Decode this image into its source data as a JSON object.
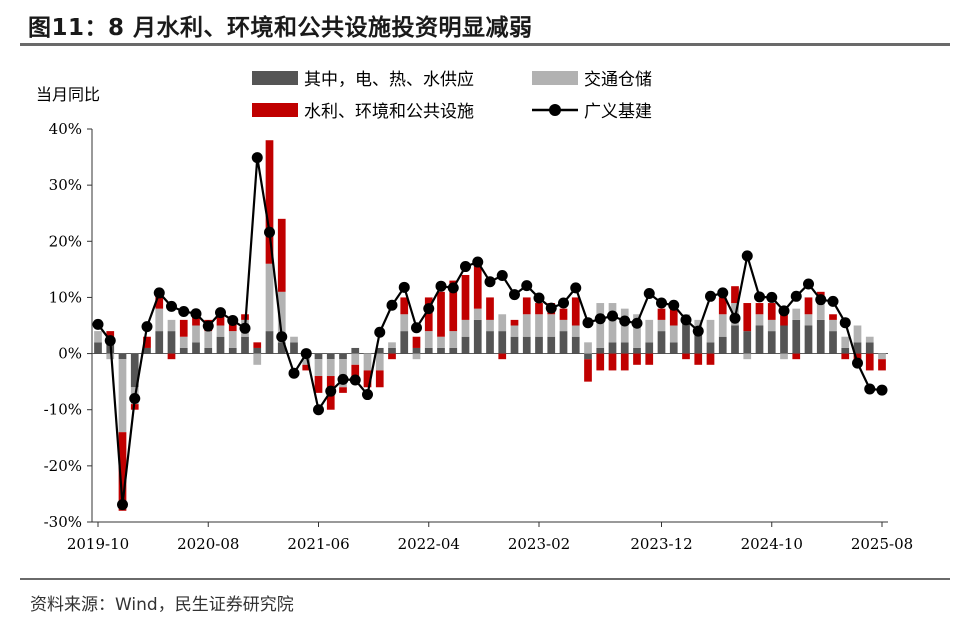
{
  "header": {
    "title": "图11：8 月水利、环境和公共设施投资明显减弱"
  },
  "footer": {
    "source": "资料来源：Wind，民生证券研究院"
  },
  "colors": {
    "dark": "#555555",
    "light": "#b2b2b2",
    "red": "#c00000",
    "line": "#000000"
  },
  "chart_data": {
    "type": "bar+line",
    "ylabel": "当月同比",
    "ylim": [
      -30,
      40
    ],
    "yticks": [
      "40%",
      "30%",
      "20%",
      "10%",
      "0%",
      "-10%",
      "-20%",
      "-30%"
    ],
    "xticks": [
      "2019-10",
      "2020-08",
      "2021-06",
      "2022-04",
      "2023-02",
      "2023-12",
      "2024-10",
      "2025-08"
    ],
    "legend": [
      {
        "name": "其中，电、热、水供应",
        "kind": "bar",
        "color": "#555555"
      },
      {
        "name": "交通仓储",
        "kind": "bar",
        "color": "#b2b2b2"
      },
      {
        "name": "水利、环境和公共设施",
        "kind": "bar",
        "color": "#c00000"
      },
      {
        "name": "广义基建",
        "kind": "line",
        "color": "#000000"
      }
    ],
    "x": [
      "2019-10",
      "2019-11",
      "2019-12",
      "2020-02",
      "2020-03",
      "2020-04",
      "2020-05",
      "2020-06",
      "2020-07",
      "2020-08",
      "2020-09",
      "2020-10",
      "2020-11",
      "2020-12",
      "2021-02",
      "2021-03",
      "2021-04",
      "2021-05",
      "2021-06",
      "2021-07",
      "2021-08",
      "2021-09",
      "2021-10",
      "2021-11",
      "2021-12",
      "2022-02",
      "2022-03",
      "2022-04",
      "2022-05",
      "2022-06",
      "2022-07",
      "2022-08",
      "2022-09",
      "2022-10",
      "2022-11",
      "2022-12",
      "2023-02",
      "2023-03",
      "2023-04",
      "2023-05",
      "2023-06",
      "2023-07",
      "2023-08",
      "2023-09",
      "2023-10",
      "2023-11",
      "2023-12",
      "2024-02",
      "2024-03",
      "2024-04",
      "2024-05",
      "2024-06",
      "2024-07",
      "2024-08",
      "2024-09",
      "2024-10",
      "2024-11",
      "2024-12",
      "2025-02",
      "2025-03",
      "2025-04",
      "2025-05",
      "2025-06",
      "2025-07",
      "2025-08"
    ],
    "series": [
      {
        "name": "其中，电、热、水供应",
        "values": [
          2,
          2,
          -1,
          -6,
          1,
          4,
          4,
          1,
          2,
          1,
          3,
          1,
          3,
          1,
          4,
          2,
          2,
          0,
          -1,
          -1,
          -1,
          1,
          0,
          1,
          1,
          4,
          1,
          1,
          1,
          1,
          3,
          6,
          4,
          4,
          3,
          3,
          3,
          3,
          4,
          3,
          -1,
          1,
          2,
          2,
          1,
          2,
          4,
          2,
          6,
          4,
          2,
          3,
          5,
          4,
          5,
          4,
          5,
          6,
          5,
          6,
          4,
          1,
          2,
          2,
          0
        ]
      },
      {
        "name": "交通仓储",
        "values": [
          2,
          -1,
          -13,
          -3,
          0,
          4,
          2,
          2,
          3,
          3,
          2,
          3,
          3,
          -2,
          12,
          9,
          1,
          -2,
          -3,
          -3,
          -5,
          -2,
          -3,
          -3,
          1,
          3,
          -1,
          3,
          2,
          3,
          3,
          2,
          2,
          3,
          2,
          4,
          4,
          4,
          2,
          2,
          2,
          8,
          7,
          6,
          6,
          4,
          2,
          3,
          1,
          2,
          4,
          4,
          4,
          -1,
          2,
          2,
          -1,
          2,
          2,
          3,
          2,
          2,
          3,
          1,
          -1
        ]
      },
      {
        "name": "水利、环境和公共设施",
        "values": [
          0,
          2,
          -14,
          -1,
          2,
          3,
          -1,
          3,
          2,
          2,
          2,
          2,
          1,
          1,
          22,
          13,
          0,
          -1,
          -3,
          -6,
          -1,
          -2,
          -3,
          -3,
          -1,
          3,
          2,
          6,
          8,
          9,
          8,
          9,
          4,
          -1,
          1,
          3,
          2,
          2,
          2,
          5,
          -4,
          -3,
          -3,
          -3,
          -2,
          -2,
          2,
          4,
          -1,
          -2,
          -2,
          3,
          3,
          5,
          2,
          3,
          3,
          -1,
          3,
          2,
          1,
          -1,
          -2,
          -3,
          -2
        ]
      },
      {
        "name": "广义基建",
        "values": [
          5.2,
          2.3,
          -26.9,
          -8,
          4.8,
          10.8,
          8.4,
          7.5,
          7.1,
          4.9,
          7.3,
          5.9,
          4.5,
          34.9,
          21.6,
          3,
          -3.5,
          0,
          -10,
          -6.7,
          -4.6,
          -4.7,
          -7.3,
          3.8,
          8.6,
          11.8,
          4.6,
          8,
          12,
          11.7,
          15.5,
          16.3,
          12.8,
          13.9,
          10.5,
          12.1,
          9.9,
          8.1,
          9,
          11.7,
          5.5,
          6.2,
          6.7,
          5.8,
          5.4,
          10.7,
          9,
          8.6,
          6,
          4,
          10.2,
          10.8,
          6.3,
          17.4,
          10.1,
          10,
          7.6,
          10.2,
          12.4,
          9.6,
          9.3,
          5.5,
          -1.7,
          -6.3,
          -6.5
        ]
      }
    ]
  }
}
